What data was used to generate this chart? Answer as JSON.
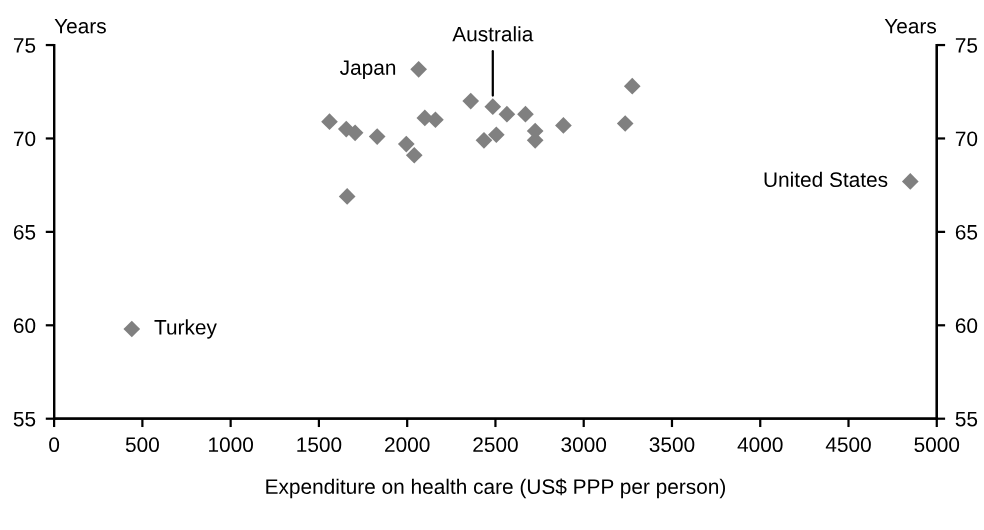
{
  "chart_data": {
    "type": "scatter",
    "xlabel": "Expenditure on health care (US$ PPP per person)",
    "ylabel": "Years",
    "y2label": "Years",
    "x": [
      440,
      1560,
      1655,
      1705,
      1660,
      1830,
      1995,
      2040,
      2065,
      2100,
      2160,
      2360,
      2435,
      2485,
      2505,
      2565,
      2670,
      2725,
      2725,
      2885,
      3235,
      3275,
      4850
    ],
    "values": [
      59.8,
      70.9,
      70.5,
      70.3,
      66.9,
      70.1,
      69.7,
      69.1,
      73.7,
      71.1,
      71.0,
      72.0,
      69.9,
      71.7,
      70.2,
      71.3,
      71.3,
      70.4,
      69.9,
      70.7,
      70.8,
      72.8,
      67.7
    ],
    "color": "#808080",
    "marker": "diamond",
    "xlim": [
      0,
      5000
    ],
    "xticks": [
      0,
      500,
      1000,
      1500,
      2000,
      2500,
      3000,
      3500,
      4000,
      4500,
      5000
    ],
    "ylim": [
      55,
      75
    ],
    "yticks": [
      55,
      60,
      65,
      70,
      75
    ],
    "y2lim": [
      55,
      75
    ],
    "y2ticks": [
      55,
      60,
      65,
      70,
      75
    ],
    "grid": false,
    "legend": false,
    "annotations": [
      {
        "text": "Turkey",
        "x": 440,
        "y": 59.8
      },
      {
        "text": "Japan",
        "x": 2065,
        "y": 73.7
      },
      {
        "text": "Australia",
        "x": 2485,
        "y": 71.7
      },
      {
        "text": "United States",
        "x": 4850,
        "y": 67.7
      }
    ]
  }
}
